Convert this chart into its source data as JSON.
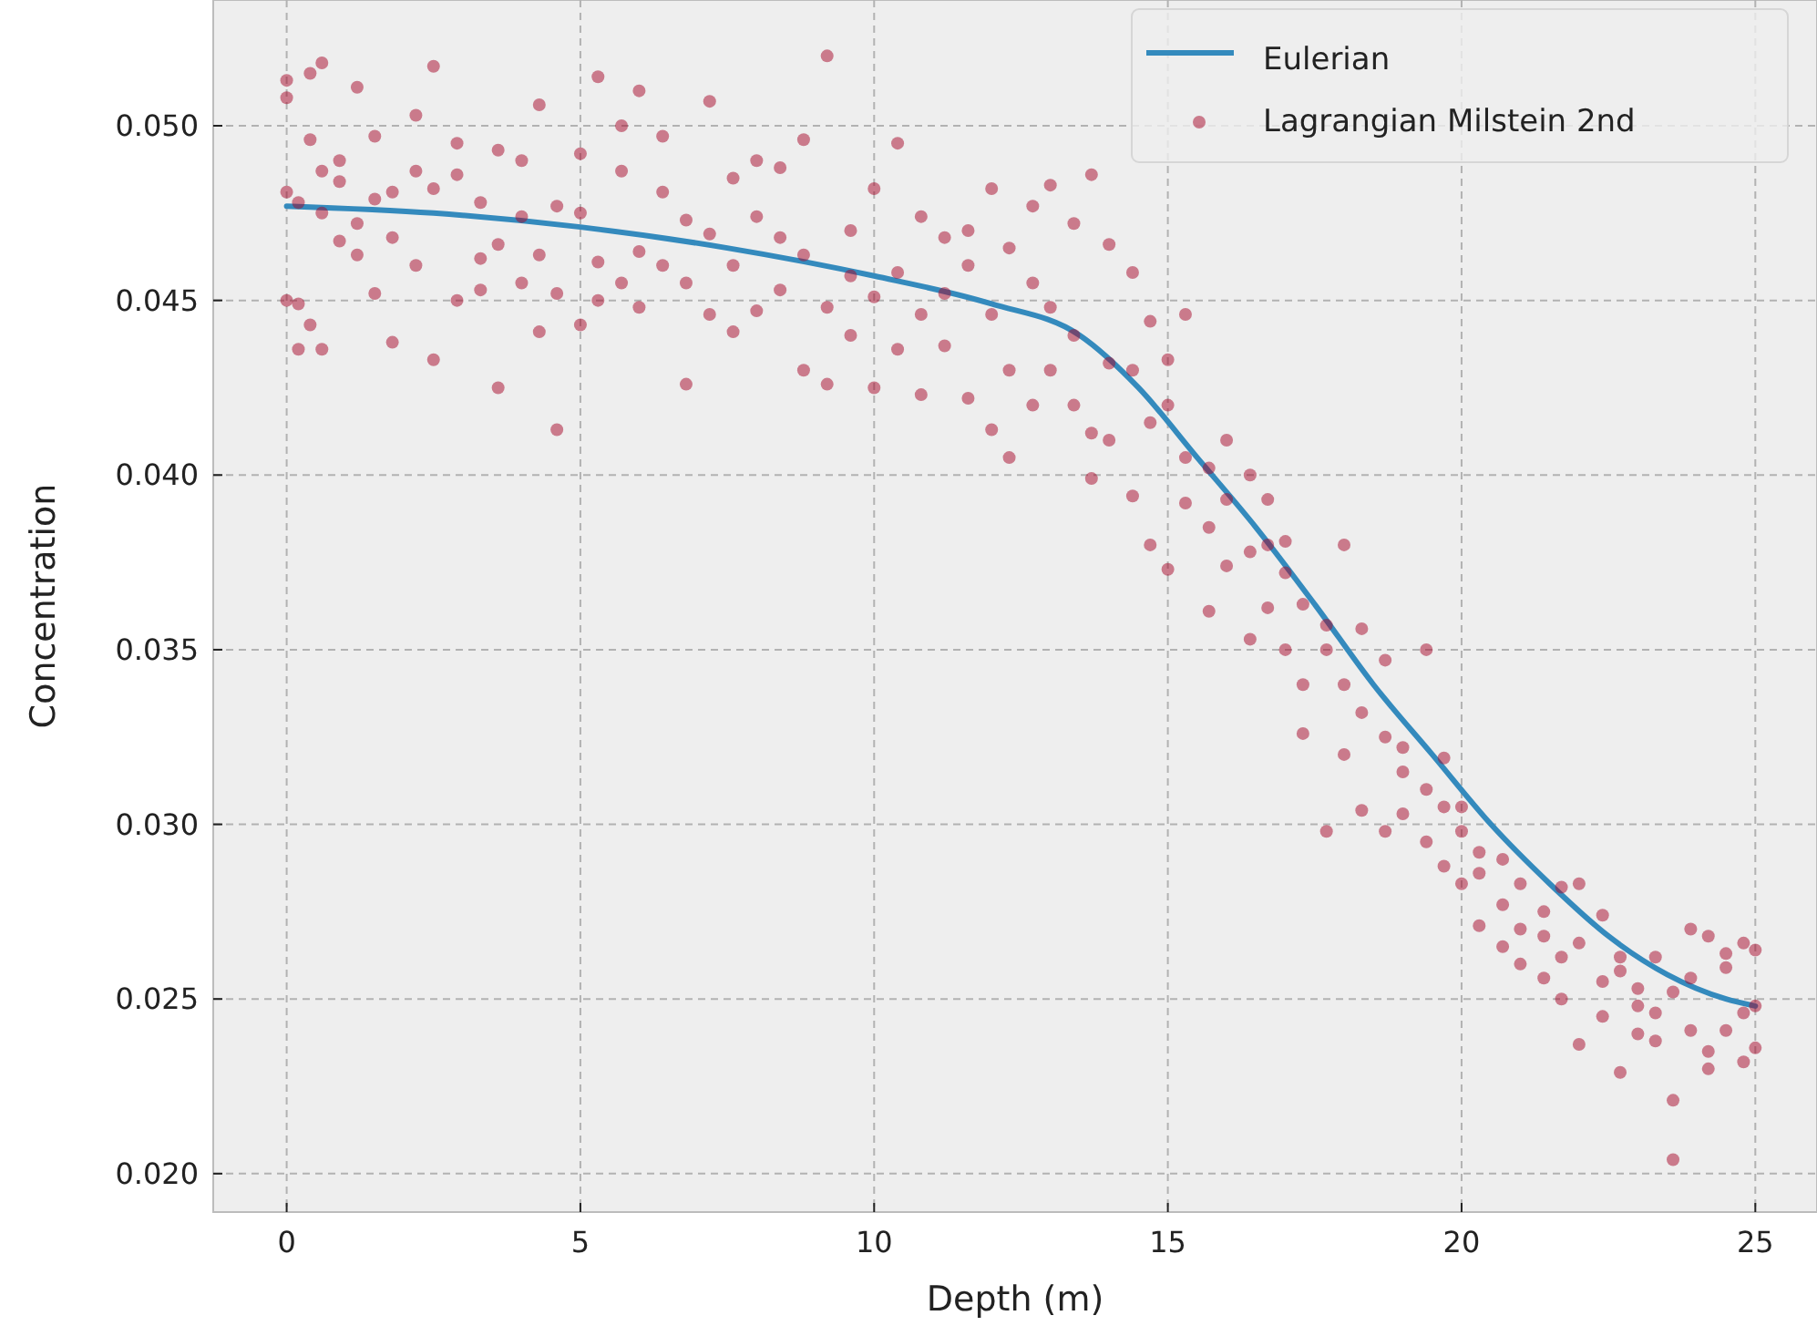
{
  "chart_data": {
    "type": "line",
    "xlabel": "Depth (m)",
    "ylabel": "Concentration",
    "xlim": [
      -1.25,
      26.05
    ],
    "xticks": [
      0,
      5,
      10,
      15,
      20,
      25
    ],
    "ylim": [
      0.0189,
      0.0536
    ],
    "yticks": [
      {
        "value": 0.02,
        "label": "0.020"
      },
      {
        "value": 0.025,
        "label": "0.025"
      },
      {
        "value": 0.03,
        "label": "0.030"
      },
      {
        "value": 0.035,
        "label": "0.035"
      },
      {
        "value": 0.04,
        "label": "0.040"
      },
      {
        "value": 0.045,
        "label": "0.045"
      },
      {
        "value": 0.05,
        "label": "0.050"
      }
    ],
    "grid": true,
    "legend": "top right",
    "series": [
      {
        "name": "Eulerian",
        "color": "#348abd",
        "marker": "none",
        "line_style": "solid",
        "x": [
          0,
          2.5,
          5,
          7.5,
          10,
          12,
          13.5,
          14.5,
          15.5,
          16.5,
          17.5,
          18.5,
          19.5,
          20.5,
          21.5,
          22.5,
          23.5,
          24.5,
          25
        ],
        "values": [
          0.0477,
          0.0475,
          0.0471,
          0.0465,
          0.0457,
          0.0449,
          0.044,
          0.0425,
          0.0405,
          0.0385,
          0.0363,
          0.034,
          0.032,
          0.03,
          0.0283,
          0.0268,
          0.0257,
          0.025,
          0.0248
        ]
      },
      {
        "name": "Lagrangian Milstein 2nd",
        "type": "scatter",
        "color": "#a60628",
        "marker": "circle",
        "x": [
          0,
          0,
          0,
          0,
          0.2,
          0.2,
          0.2,
          0.4,
          0.4,
          0.4,
          0.6,
          0.6,
          0.6,
          0.6,
          0.9,
          0.9,
          0.9,
          1.2,
          1.2,
          1.2,
          1.5,
          1.5,
          1.5,
          1.8,
          1.8,
          1.8,
          2.2,
          2.2,
          2.2,
          2.5,
          2.5,
          2.5,
          2.9,
          2.9,
          2.9,
          3.3,
          3.3,
          3.3,
          3.6,
          3.6,
          3.6,
          4,
          4,
          4,
          4.3,
          4.3,
          4.3,
          4.6,
          4.6,
          4.6,
          5,
          5,
          5,
          5.3,
          5.3,
          5.3,
          5.7,
          5.7,
          5.7,
          6,
          6,
          6,
          6.4,
          6.4,
          6.4,
          6.8,
          6.8,
          6.8,
          7.2,
          7.2,
          7.2,
          7.6,
          7.6,
          7.6,
          8,
          8,
          8,
          8.4,
          8.4,
          8.4,
          8.8,
          8.8,
          8.8,
          9.2,
          9.2,
          9.2,
          9.6,
          9.6,
          9.6,
          10,
          10,
          10,
          10.4,
          10.4,
          10.4,
          10.8,
          10.8,
          10.8,
          11.2,
          11.2,
          11.2,
          11.6,
          11.6,
          11.6,
          12,
          12,
          12,
          12.3,
          12.3,
          12.3,
          12.7,
          12.7,
          12.7,
          13,
          13,
          13,
          13.4,
          13.4,
          13.4,
          13.7,
          13.7,
          13.7,
          14,
          14,
          14,
          14.4,
          14.4,
          14.4,
          14.7,
          14.7,
          14.7,
          15,
          15,
          15,
          15.3,
          15.3,
          15.3,
          15.7,
          15.7,
          15.7,
          16,
          16,
          16,
          16.4,
          16.4,
          16.4,
          16.7,
          16.7,
          16.7,
          17,
          17,
          17,
          17.3,
          17.3,
          17.3,
          17.7,
          17.7,
          17.7,
          18,
          18,
          18,
          18.3,
          18.3,
          18.3,
          18.7,
          18.7,
          18.7,
          19,
          19,
          19,
          19.4,
          19.4,
          19.4,
          19.7,
          19.7,
          19.7,
          20,
          20,
          20,
          20.3,
          20.3,
          20.3,
          20.7,
          20.7,
          20.7,
          21,
          21,
          21,
          21.4,
          21.4,
          21.4,
          21.7,
          21.7,
          21.7,
          22,
          22,
          22,
          22.4,
          22.4,
          22.4,
          22.7,
          22.7,
          22.7,
          23,
          23,
          23,
          23.3,
          23.3,
          23.3,
          23.6,
          23.6,
          23.6,
          23.9,
          23.9,
          23.9,
          24.2,
          24.2,
          24.2,
          24.5,
          24.5,
          24.5,
          24.8,
          24.8,
          24.8,
          25,
          25,
          25
        ],
        "values": [
          0.0481,
          0.045,
          0.0508,
          0.0513,
          0.0436,
          0.0478,
          0.0449,
          0.0515,
          0.0443,
          0.0496,
          0.0518,
          0.0436,
          0.0487,
          0.0475,
          0.0484,
          0.049,
          0.0467,
          0.0511,
          0.0472,
          0.0463,
          0.0497,
          0.0452,
          0.0479,
          0.0438,
          0.0481,
          0.0468,
          0.0503,
          0.0487,
          0.046,
          0.0517,
          0.0482,
          0.0433,
          0.0486,
          0.045,
          0.0495,
          0.0478,
          0.0453,
          0.0462,
          0.0425,
          0.0493,
          0.0466,
          0.0474,
          0.0455,
          0.049,
          0.0506,
          0.0441,
          0.0463,
          0.0413,
          0.0477,
          0.0452,
          0.0475,
          0.0443,
          0.0492,
          0.0514,
          0.0461,
          0.045,
          0.05,
          0.0487,
          0.0455,
          0.0464,
          0.0448,
          0.051,
          0.0481,
          0.046,
          0.0497,
          0.0473,
          0.0426,
          0.0455,
          0.0446,
          0.0469,
          0.0507,
          0.0485,
          0.046,
          0.0441,
          0.0474,
          0.0447,
          0.049,
          0.0468,
          0.0453,
          0.0488,
          0.043,
          0.0463,
          0.0496,
          0.052,
          0.0448,
          0.0426,
          0.047,
          0.044,
          0.0457,
          0.0451,
          0.0425,
          0.0482,
          0.0495,
          0.0458,
          0.0436,
          0.0474,
          0.0446,
          0.0423,
          0.0468,
          0.0437,
          0.0452,
          0.046,
          0.0422,
          0.047,
          0.0482,
          0.0446,
          0.0413,
          0.0465,
          0.043,
          0.0405,
          0.0477,
          0.0455,
          0.042,
          0.0483,
          0.0448,
          0.043,
          0.0472,
          0.044,
          0.042,
          0.0486,
          0.0412,
          0.0399,
          0.0466,
          0.0432,
          0.041,
          0.0458,
          0.043,
          0.0394,
          0.0444,
          0.0415,
          0.038,
          0.0433,
          0.042,
          0.0373,
          0.0446,
          0.0405,
          0.0392,
          0.0402,
          0.0385,
          0.0361,
          0.0393,
          0.0374,
          0.041,
          0.0378,
          0.04,
          0.0353,
          0.0362,
          0.038,
          0.0393,
          0.0372,
          0.035,
          0.0381,
          0.0363,
          0.0326,
          0.034,
          0.0357,
          0.0298,
          0.035,
          0.034,
          0.038,
          0.032,
          0.0332,
          0.0356,
          0.0304,
          0.0347,
          0.0325,
          0.0298,
          0.0322,
          0.0303,
          0.0315,
          0.031,
          0.0295,
          0.035,
          0.0305,
          0.0288,
          0.0319,
          0.0298,
          0.0283,
          0.0305,
          0.0292,
          0.0271,
          0.0286,
          0.0277,
          0.0265,
          0.029,
          0.0283,
          0.026,
          0.027,
          0.0275,
          0.0256,
          0.0268,
          0.0262,
          0.0282,
          0.025,
          0.0266,
          0.0237,
          0.0283,
          0.0255,
          0.0274,
          0.0245,
          0.0258,
          0.0229,
          0.0262,
          0.0253,
          0.0248,
          0.024,
          0.0246,
          0.0262,
          0.0238,
          0.0221,
          0.0204,
          0.0252,
          0.0256,
          0.027,
          0.0241,
          0.0268,
          0.0235,
          0.023,
          0.0263,
          0.0259,
          0.0241,
          0.0232,
          0.0266,
          0.0246,
          0.0264,
          0.0236,
          0.0248
        ]
      }
    ]
  }
}
